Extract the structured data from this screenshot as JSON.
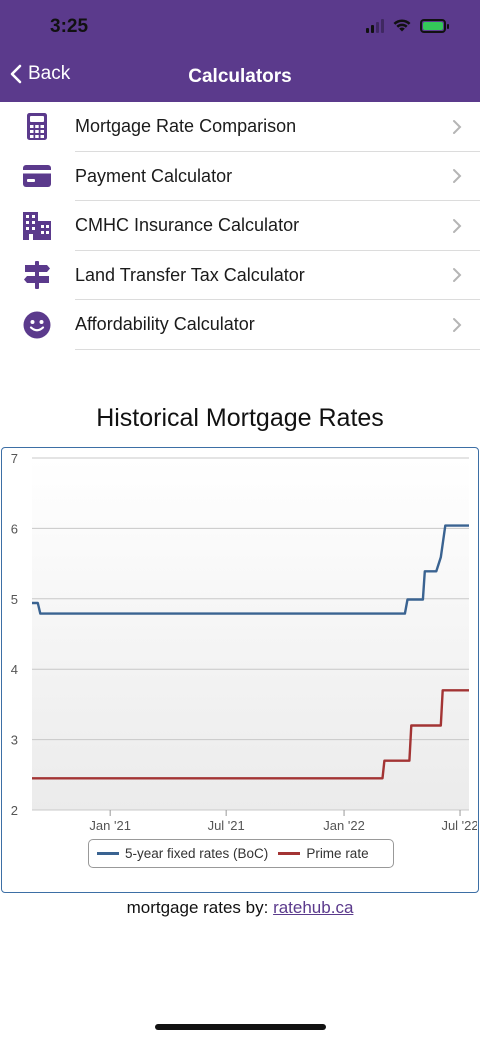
{
  "status_bar": {
    "time": "3:25"
  },
  "nav": {
    "back_label": "Back",
    "title": "Calculators"
  },
  "menu": [
    {
      "label": "Mortgage Rate Comparison",
      "icon": "calculator-icon"
    },
    {
      "label": "Payment Calculator",
      "icon": "credit-card-icon"
    },
    {
      "label": "CMHC Insurance Calculator",
      "icon": "building-icon"
    },
    {
      "label": "Land Transfer Tax Calculator",
      "icon": "signpost-icon"
    },
    {
      "label": "Affordability Calculator",
      "icon": "smiley-icon"
    }
  ],
  "colors": {
    "brand": "#5b3a8c",
    "series_fixed": "#3a6391",
    "series_prime": "#a33434",
    "chart_border": "#3d6fa5"
  },
  "chart_data": {
    "type": "line",
    "title": "Historical Mortgage Rates",
    "ylim": [
      2,
      7
    ],
    "y_ticks": [
      2,
      3,
      4,
      5,
      6,
      7
    ],
    "x_ticks": [
      "Jan '21",
      "Jul '21",
      "Jan '22",
      "Jul '22"
    ],
    "x_tick_dates": [
      "2021-01-01",
      "2021-07-01",
      "2022-01-01",
      "2022-07-01"
    ],
    "x_range": [
      "2020-09-01",
      "2022-07-15"
    ],
    "grid": true,
    "legend": "bottom",
    "series": [
      {
        "name": "5-year fixed rates (BoC)",
        "color": "#3a6391",
        "points": [
          [
            "2020-09-01",
            4.94
          ],
          [
            "2020-09-10",
            4.94
          ],
          [
            "2020-09-14",
            4.79
          ],
          [
            "2022-04-06",
            4.79
          ],
          [
            "2022-04-10",
            4.99
          ],
          [
            "2022-05-04",
            4.99
          ],
          [
            "2022-05-07",
            5.39
          ],
          [
            "2022-05-25",
            5.39
          ],
          [
            "2022-06-01",
            5.59
          ],
          [
            "2022-06-08",
            6.04
          ],
          [
            "2022-07-15",
            6.04
          ]
        ]
      },
      {
        "name": "Prime rate",
        "color": "#a33434",
        "points": [
          [
            "2020-09-01",
            2.45
          ],
          [
            "2022-03-02",
            2.45
          ],
          [
            "2022-03-05",
            2.7
          ],
          [
            "2022-04-13",
            2.7
          ],
          [
            "2022-04-16",
            3.2
          ],
          [
            "2022-06-01",
            3.2
          ],
          [
            "2022-06-04",
            3.7
          ],
          [
            "2022-07-15",
            3.7
          ]
        ]
      }
    ]
  },
  "credit": {
    "prefix": "mortgage rates by:",
    "link": "ratehub.ca"
  }
}
